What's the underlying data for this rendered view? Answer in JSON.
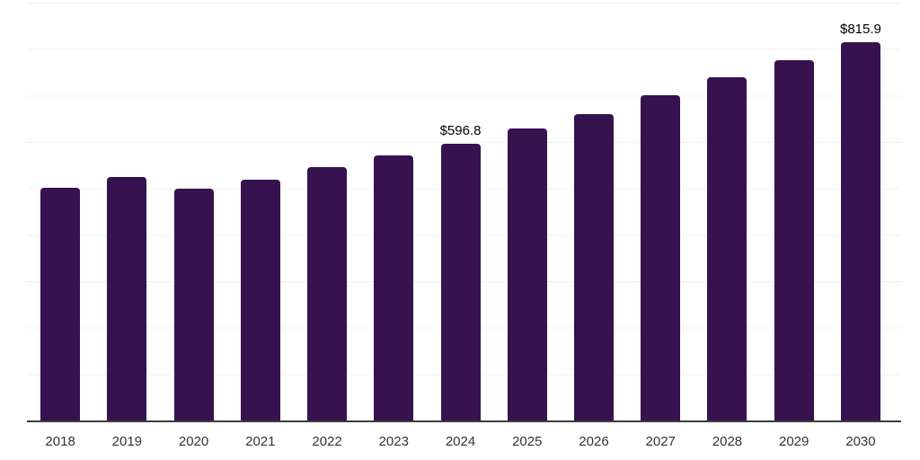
{
  "chart_data": {
    "type": "bar",
    "title": "",
    "xlabel": "",
    "ylabel": "",
    "categories": [
      "2018",
      "2019",
      "2020",
      "2021",
      "2022",
      "2023",
      "2024",
      "2025",
      "2026",
      "2027",
      "2028",
      "2029",
      "2030"
    ],
    "values": [
      502,
      524,
      499,
      519,
      545,
      572,
      596.8,
      630,
      661,
      700,
      739,
      777,
      815.9
    ],
    "bar_labels": [
      "",
      "",
      "",
      "",
      "",
      "",
      "$596.8",
      "",
      "",
      "",
      "",
      "",
      "$815.9"
    ],
    "annotations": [
      {
        "category": "2024",
        "text": "$596.8"
      },
      {
        "category": "2030",
        "text": "$815.9"
      }
    ],
    "ylim": [
      0,
      900
    ],
    "gridline_interval": 100,
    "grid": "horizontal light-gray lines, no y-axis tick labels",
    "legend": "none",
    "colors": {
      "bar": "#36124F",
      "axis_line": "#3c3c3c",
      "gridline": "#f0f0f0",
      "tick_label": "#333333",
      "data_label": "#000000",
      "background": "#ffffff"
    }
  }
}
